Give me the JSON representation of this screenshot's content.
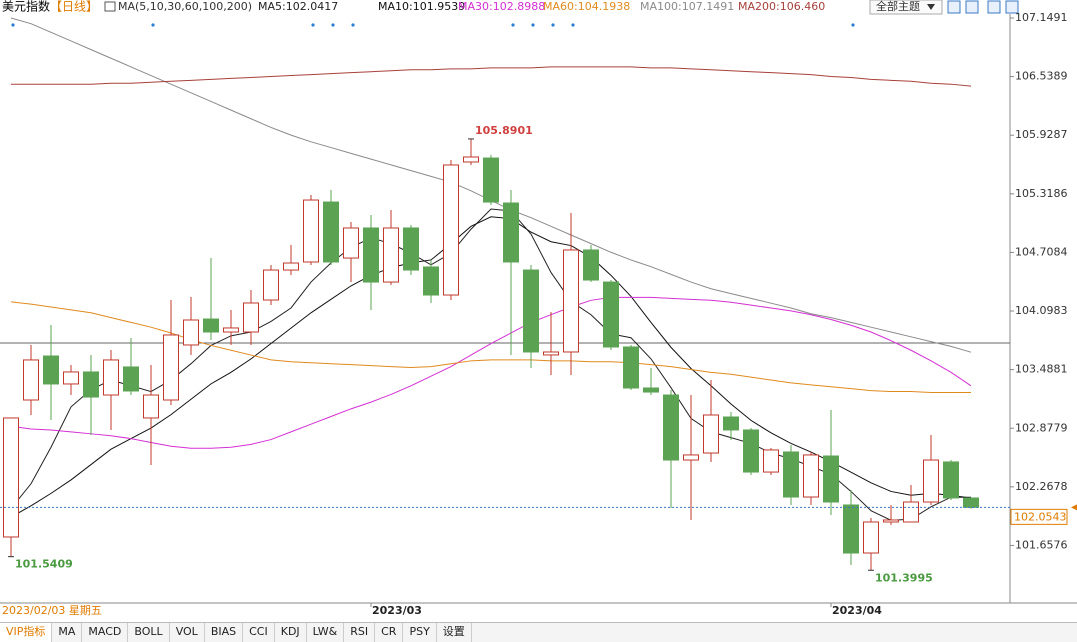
{
  "header": {
    "title": "美元指数",
    "period": "【日线】",
    "ma_params": "MA(5,10,30,60,100,200)",
    "theme_button": "全部主题"
  },
  "chart_data": {
    "type": "candlestick",
    "categories": [
      null,
      null,
      null,
      null,
      null,
      null,
      null,
      null,
      null,
      null,
      null,
      null,
      null,
      null,
      null,
      null,
      null,
      null,
      "2023/03",
      null,
      null,
      null,
      null,
      null,
      null,
      null,
      null,
      null,
      null,
      null,
      null,
      null,
      null,
      null,
      null,
      null,
      null,
      null,
      null,
      null,
      null,
      "2023/04",
      null,
      null,
      null,
      null,
      null,
      null,
      null
    ],
    "open": [
      101.746,
      103.172,
      103.63,
      103.339,
      103.464,
      103.224,
      103.516,
      102.985,
      103.172,
      103.745,
      104.015,
      103.88,
      103.88,
      104.213,
      104.525,
      104.609,
      105.233,
      104.65,
      104.963,
      104.4,
      104.963,
      104.557,
      104.265,
      105.65,
      105.691,
      105.223,
      104.525,
      103.641,
      103.672,
      104.734,
      104.4,
      103.724,
      103.297,
      103.224,
      102.547,
      102.62,
      102.995,
      102.86,
      102.422,
      102.631,
      102.162,
      102.589,
      102.079,
      101.579,
      101.902,
      101.902,
      102.11,
      102.527,
      102.152
    ],
    "high": [
      102.985,
      103.745,
      103.953,
      103.537,
      103.641,
      103.693,
      103.818,
      103.537,
      104.213,
      104.244,
      104.65,
      104.109,
      104.317,
      104.577,
      104.786,
      105.306,
      105.358,
      105.025,
      105.098,
      105.15,
      104.994,
      104.63,
      105.671,
      105.8901,
      105.723,
      105.358,
      104.577,
      104.088,
      105.119,
      104.786,
      104.421,
      103.745,
      103.505,
      103.276,
      103.224,
      103.38,
      103.047,
      102.881,
      102.672,
      102.704,
      102.631,
      103.068,
      102.235,
      101.944,
      102.079,
      102.287,
      102.808,
      102.547,
      102.152
    ],
    "low": [
      101.5409,
      103.016,
      102.964,
      103.224,
      102.808,
      102.86,
      103.224,
      102.495,
      103.12,
      103.641,
      103.797,
      103.745,
      103.745,
      104.161,
      104.473,
      104.577,
      104.577,
      104.4,
      104.109,
      104.369,
      104.473,
      104.182,
      104.213,
      105.619,
      105.202,
      103.641,
      103.505,
      103.432,
      103.432,
      104.4,
      103.693,
      103.276,
      103.224,
      102.048,
      101.923,
      102.527,
      102.756,
      102.391,
      102.391,
      102.079,
      102.079,
      101.975,
      101.454,
      101.3995,
      101.871,
      101.902,
      102.079,
      102.131,
      102.04
    ],
    "close": [
      102.985,
      103.589,
      103.339,
      103.464,
      103.203,
      103.589,
      103.266,
      103.224,
      103.849,
      104.005,
      103.88,
      103.922,
      104.182,
      104.525,
      104.598,
      105.254,
      104.609,
      104.963,
      104.4,
      104.963,
      104.525,
      104.265,
      105.619,
      105.702,
      105.233,
      104.609,
      103.672,
      103.672,
      104.734,
      104.421,
      103.724,
      103.297,
      103.255,
      102.547,
      102.6,
      103.016,
      102.86,
      102.422,
      102.652,
      102.162,
      102.6,
      102.11,
      101.579,
      101.902,
      101.923,
      102.11,
      102.547,
      102.152,
      102.0543
    ],
    "up_color": "#c0392b",
    "down_color": "#5ba352",
    "series": [
      {
        "name": "MA5:102.0417",
        "color": "#222222",
        "values": [
          102.0417,
          102.3,
          102.68,
          103.1,
          103.28,
          103.38,
          103.32,
          103.26,
          103.38,
          103.55,
          103.74,
          103.84,
          103.88,
          103.99,
          104.13,
          104.4,
          104.6,
          104.76,
          104.86,
          104.8,
          104.7,
          104.58,
          104.7,
          104.95,
          105.16,
          105.14,
          104.9,
          104.5,
          104.2,
          104.06,
          103.86,
          103.82,
          103.6,
          103.3,
          102.98,
          102.84,
          102.78,
          102.72,
          102.62,
          102.56,
          102.48,
          102.4,
          102.22,
          102.02,
          101.92,
          101.93,
          102.06,
          102.16,
          102.16
        ]
      },
      {
        "name": "MA10:101.9539",
        "color": "#111111",
        "values": [
          101.9539,
          102.07,
          102.2,
          102.34,
          102.5,
          102.66,
          102.77,
          102.88,
          103.02,
          103.18,
          103.34,
          103.46,
          103.6,
          103.76,
          103.92,
          104.08,
          104.22,
          104.36,
          104.47,
          104.55,
          104.6,
          104.63,
          104.8,
          104.98,
          105.08,
          105.06,
          104.92,
          104.82,
          104.78,
          104.66,
          104.47,
          104.25,
          103.98,
          103.72,
          103.5,
          103.32,
          103.13,
          102.96,
          102.83,
          102.72,
          102.63,
          102.53,
          102.42,
          102.31,
          102.22,
          102.18,
          102.2,
          102.18,
          102.15
        ]
      },
      {
        "name": "MA30:102.8988",
        "color": "#d42fd4",
        "values": [
          102.8988,
          102.87,
          102.86,
          102.84,
          102.82,
          102.8,
          102.77,
          102.73,
          102.69,
          102.67,
          102.67,
          102.68,
          102.71,
          102.76,
          102.84,
          102.92,
          103.0,
          103.08,
          103.15,
          103.23,
          103.32,
          103.42,
          103.52,
          103.64,
          103.76,
          103.87,
          103.98,
          104.06,
          104.14,
          104.21,
          104.24,
          104.24,
          104.24,
          104.23,
          104.22,
          104.21,
          104.19,
          104.16,
          104.13,
          104.1,
          104.06,
          104.01,
          103.95,
          103.88,
          103.79,
          103.69,
          103.58,
          103.46,
          103.32
        ]
      },
      {
        "name": "MA60:104.1938",
        "color": "#e08a1e",
        "values": [
          104.1938,
          104.17,
          104.14,
          104.11,
          104.08,
          104.03,
          103.98,
          103.93,
          103.87,
          103.8,
          103.74,
          103.69,
          103.64,
          103.59,
          103.57,
          103.56,
          103.55,
          103.54,
          103.53,
          103.52,
          103.51,
          103.52,
          103.55,
          103.58,
          103.59,
          103.59,
          103.59,
          103.58,
          103.58,
          103.57,
          103.57,
          103.56,
          103.54,
          103.52,
          103.49,
          103.46,
          103.44,
          103.41,
          103.38,
          103.35,
          103.33,
          103.31,
          103.29,
          103.27,
          103.26,
          103.26,
          103.25,
          103.25,
          103.25
        ]
      },
      {
        "name": "MA100:107.1491",
        "color": "#8a8a8a",
        "values": [
          107.1491,
          107.09,
          107.0,
          106.91,
          106.82,
          106.73,
          106.64,
          106.55,
          106.46,
          106.37,
          106.28,
          106.19,
          106.1,
          106.01,
          105.93,
          105.86,
          105.8,
          105.74,
          105.68,
          105.62,
          105.56,
          105.5,
          105.44,
          105.35,
          105.25,
          105.15,
          105.07,
          104.98,
          104.89,
          104.8,
          104.71,
          104.63,
          104.56,
          104.48,
          104.4,
          104.33,
          104.28,
          104.23,
          104.18,
          104.13,
          104.07,
          104.03,
          103.98,
          103.93,
          103.88,
          103.83,
          103.78,
          103.73,
          103.67
        ]
      },
      {
        "name": "MA200:106.460",
        "color": "#a8403a",
        "values": [
          106.46,
          106.46,
          106.46,
          106.46,
          106.46,
          106.47,
          106.47,
          106.48,
          106.49,
          106.5,
          106.51,
          106.52,
          106.53,
          106.54,
          106.55,
          106.56,
          106.57,
          106.58,
          106.59,
          106.6,
          106.61,
          106.61,
          106.62,
          106.62,
          106.63,
          106.63,
          106.63,
          106.64,
          106.64,
          106.64,
          106.64,
          106.64,
          106.63,
          106.63,
          106.62,
          106.61,
          106.6,
          106.59,
          106.58,
          106.57,
          106.56,
          106.54,
          106.53,
          106.51,
          106.5,
          106.49,
          106.47,
          106.46,
          106.44
        ]
      }
    ],
    "ylim": [
      101.0898,
      107.3365
    ],
    "yticks": [
      101.6576,
      102.2678,
      102.8779,
      103.4881,
      104.0983,
      104.7084,
      105.3186,
      105.9287,
      106.5389,
      107.1491
    ],
    "reference_line": 103.766,
    "extreme_marks": [
      {
        "field": "high",
        "index": 23
      },
      {
        "field": "low",
        "index": 0
      },
      {
        "field": "low",
        "index": 43
      }
    ],
    "event_markers": [
      0,
      7,
      15,
      16,
      17,
      25,
      26,
      27,
      28,
      42
    ],
    "cursor_label": "2023/02/03 星期五"
  },
  "toolbar": {
    "tabs": [
      "VIP指标",
      "MA",
      "MACD",
      "BOLL",
      "VOL",
      "BIAS",
      "CCI",
      "KDJ",
      "LW&",
      "RSI",
      "CR",
      "PSY",
      "设置"
    ],
    "selected": 0
  }
}
